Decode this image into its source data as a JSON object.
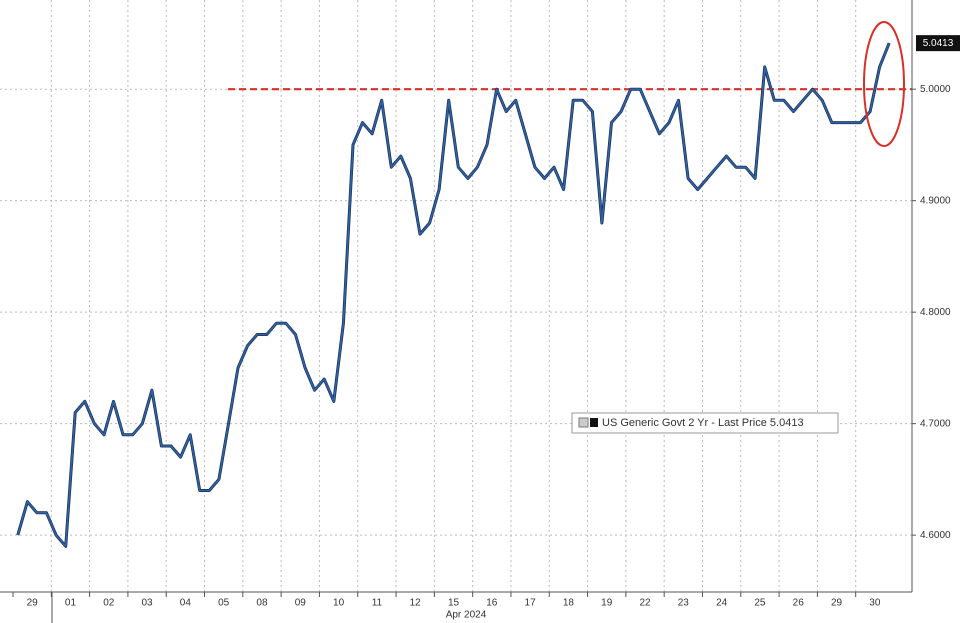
{
  "chart_data": {
    "type": "line",
    "xlabel": "Apr 2024",
    "last_label": "5.0413",
    "categories": [
      "29",
      null,
      null,
      null,
      "01",
      null,
      null,
      null,
      "02",
      null,
      null,
      null,
      "03",
      null,
      null,
      null,
      "04",
      null,
      null,
      null,
      "05",
      null,
      null,
      null,
      "08",
      null,
      null,
      null,
      "09",
      null,
      null,
      null,
      "10",
      null,
      null,
      null,
      "11",
      null,
      null,
      null,
      "12",
      null,
      null,
      null,
      "15",
      null,
      null,
      null,
      "16",
      null,
      null,
      null,
      "17",
      null,
      null,
      null,
      "18",
      null,
      null,
      null,
      "19",
      null,
      null,
      null,
      "22",
      null,
      null,
      null,
      "23",
      null,
      null,
      null,
      "24",
      null,
      null,
      null,
      "25",
      null,
      null,
      null,
      "26",
      null,
      null,
      null,
      "29",
      null,
      null,
      null,
      "30",
      null,
      null,
      null
    ],
    "series": [
      {
        "name": "US Generic Govt 2 Yr - Last Price 5.0413",
        "color": "#2f63a6",
        "values": [
          4.6,
          4.63,
          4.62,
          4.62,
          4.6,
          4.59,
          4.71,
          4.72,
          4.7,
          4.69,
          4.72,
          4.69,
          4.69,
          4.7,
          4.73,
          4.68,
          4.68,
          4.67,
          4.69,
          4.64,
          4.64,
          4.65,
          4.7,
          4.75,
          4.77,
          4.78,
          4.78,
          4.79,
          4.79,
          4.78,
          4.75,
          4.73,
          4.74,
          4.72,
          4.79,
          4.95,
          4.97,
          4.96,
          4.99,
          4.93,
          4.94,
          4.92,
          4.87,
          4.88,
          4.91,
          4.99,
          4.93,
          4.92,
          4.93,
          4.95,
          5.0,
          4.98,
          4.99,
          4.96,
          4.93,
          4.92,
          4.93,
          4.91,
          4.99,
          4.99,
          4.98,
          4.88,
          4.97,
          4.98,
          5.0,
          5.0,
          4.98,
          4.96,
          4.97,
          4.99,
          4.92,
          4.91,
          4.92,
          4.93,
          4.94,
          4.93,
          4.93,
          4.92,
          5.02,
          4.99,
          4.99,
          4.98,
          4.99,
          5.0,
          4.99,
          4.97,
          4.97,
          4.97,
          4.97,
          4.98,
          5.02,
          5.0413
        ]
      }
    ],
    "ylim": [
      4.549,
      5.08
    ],
    "yticks": [
      {
        "value": 4.6,
        "label": "4.6000"
      },
      {
        "value": 4.7,
        "label": "4.7000"
      },
      {
        "value": 4.8,
        "label": "4.8000"
      },
      {
        "value": 4.9,
        "label": "4.9000"
      },
      {
        "value": 5.0,
        "label": "5.0000"
      }
    ],
    "hline": {
      "value": 5.0,
      "color": "#d9302a"
    },
    "grid": true
  }
}
